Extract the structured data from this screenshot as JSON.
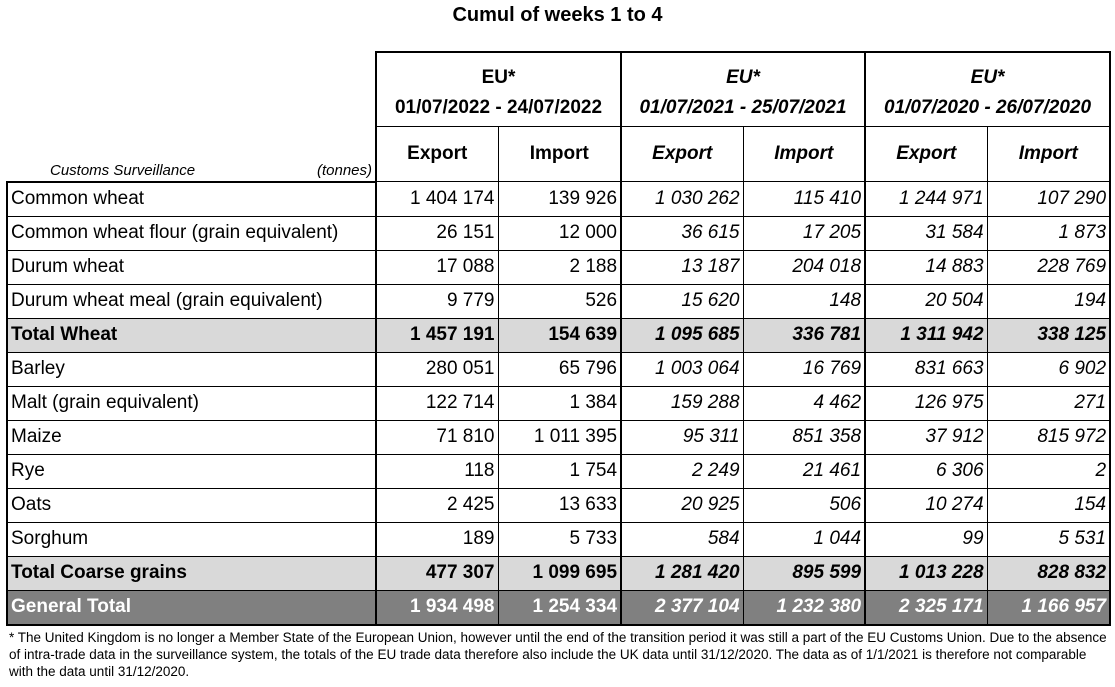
{
  "title": "Cumul of weeks 1 to 4",
  "header": {
    "groups": [
      {
        "label": "EU*",
        "period": "01/07/2022 - 24/07/2022",
        "italic": false
      },
      {
        "label": "EU*",
        "period": "01/07/2021 - 25/07/2021",
        "italic": true
      },
      {
        "label": "EU*",
        "period": "01/07/2020 - 26/07/2020",
        "italic": true
      }
    ],
    "export_label": "Export",
    "import_label": "Import",
    "source_label": "Customs Surveillance",
    "unit_label": "(tonnes)"
  },
  "rows": [
    {
      "name": "Common wheat",
      "type": "normal",
      "values": [
        "1 404 174",
        "139 926",
        "1 030 262",
        "115 410",
        "1 244 971",
        "107 290"
      ]
    },
    {
      "name": "Common wheat flour (grain equivalent)",
      "type": "normal",
      "values": [
        "26 151",
        "12 000",
        "36 615",
        "17 205",
        "31 584",
        "1 873"
      ]
    },
    {
      "name": "Durum wheat",
      "type": "normal",
      "values": [
        "17 088",
        "2 188",
        "13 187",
        "204 018",
        "14 883",
        "228 769"
      ]
    },
    {
      "name": "Durum wheat meal (grain equivalent)",
      "type": "normal",
      "values": [
        "9 779",
        "526",
        "15 620",
        "148",
        "20 504",
        "194"
      ]
    },
    {
      "name": "Total Wheat",
      "type": "total",
      "values": [
        "1 457 191",
        "154 639",
        "1 095 685",
        "336 781",
        "1 311 942",
        "338 125"
      ]
    },
    {
      "name": "Barley",
      "type": "normal",
      "values": [
        "280 051",
        "65 796",
        "1 003 064",
        "16 769",
        "831 663",
        "6 902"
      ]
    },
    {
      "name": "Malt (grain equivalent)",
      "type": "normal",
      "values": [
        "122 714",
        "1 384",
        "159 288",
        "4 462",
        "126 975",
        "271"
      ]
    },
    {
      "name": "Maize",
      "type": "normal",
      "values": [
        "71 810",
        "1 011 395",
        "95 311",
        "851 358",
        "37 912",
        "815 972"
      ]
    },
    {
      "name": "Rye",
      "type": "normal",
      "values": [
        "118",
        "1 754",
        "2 249",
        "21 461",
        "6 306",
        "2"
      ]
    },
    {
      "name": "Oats",
      "type": "normal",
      "values": [
        "2 425",
        "13 633",
        "20 925",
        "506",
        "10 274",
        "154"
      ]
    },
    {
      "name": "Sorghum",
      "type": "normal",
      "values": [
        "189",
        "5 733",
        "584",
        "1 044",
        "99",
        "5 531"
      ]
    },
    {
      "name": "Total Coarse grains",
      "type": "total",
      "values": [
        "477 307",
        "1 099 695",
        "1 281 420",
        "895 599",
        "1 013 228",
        "828 832"
      ]
    },
    {
      "name": "General Total",
      "type": "grand",
      "values": [
        "1 934 498",
        "1 254 334",
        "2 377 104",
        "1 232 380",
        "2 325 171",
        "1 166 957"
      ]
    }
  ],
  "footnote": "* The United Kingdom is no longer a Member State of the European Union, however until the end of the transition period it was still a part of the EU Customs Union. Due to the absence of intra-trade data in the surveillance system, the totals of the EU trade data  therefore also include the UK data until 31/12/2020. The data as of 1/1/2021 is therefore not comparable with the data until 31/12/2020.",
  "colors": {
    "total_row_bg": "#d9d9d9",
    "grand_total_bg": "#808080",
    "grand_total_text": "#ffffff"
  }
}
